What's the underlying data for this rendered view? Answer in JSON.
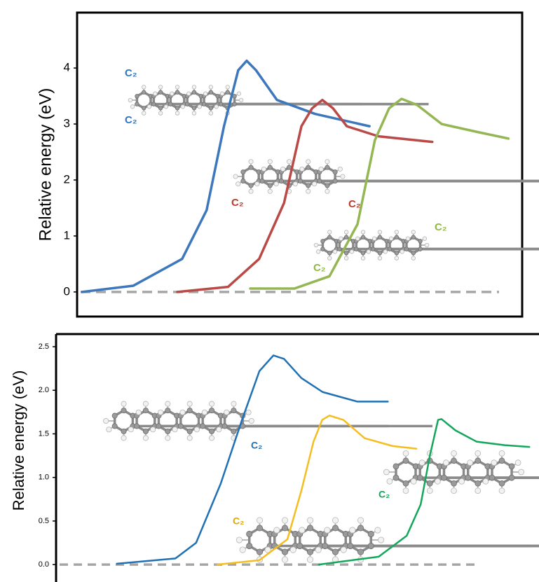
{
  "chart_data": [
    {
      "type": "line",
      "ylabel": "Relative energy (eV)",
      "xlim": [
        0,
        100
      ],
      "ylim": [
        -0.44,
        4.99
      ],
      "yticks": [
        0,
        1,
        2,
        3,
        4
      ],
      "hline": {
        "value": 0,
        "color": "#a6a6a6",
        "dashed": true
      },
      "series": [
        {
          "color": "#3d78bd",
          "x": [
            1.1,
            12.6,
            23.6,
            29.1,
            33,
            36.2,
            38.1,
            40.2,
            44.9,
            53.5,
            65.7
          ],
          "values": [
            0,
            0.11,
            0.59,
            1.46,
            2.96,
            3.96,
            4.13,
            3.96,
            3.43,
            3.18,
            2.96
          ]
        },
        {
          "color": "#b94a47",
          "x": [
            22.5,
            33.9,
            40.9,
            46.5,
            50.4,
            52.8,
            55.1,
            57.5,
            60.6,
            67.7,
            79.8
          ],
          "values": [
            0,
            0.09,
            0.59,
            1.59,
            2.96,
            3.28,
            3.43,
            3.28,
            2.96,
            2.78,
            2.68
          ]
        },
        {
          "color": "#94b653",
          "x": [
            38.9,
            48.8,
            56.7,
            63,
            66.9,
            70.1,
            72.9,
            76.4,
            81.9,
            89.8,
            96.9
          ],
          "values": [
            0.06,
            0.06,
            0.28,
            1.21,
            2.71,
            3.28,
            3.45,
            3.34,
            3.0,
            2.86,
            2.74
          ]
        }
      ],
      "annotations": [
        {
          "text": "C₂",
          "color": "#2e75c6"
        },
        {
          "text": "C₂",
          "color": "#2e75c6"
        },
        {
          "text": "C₂",
          "color": "#c0392b"
        },
        {
          "text": "C₂",
          "color": "#c0392b"
        },
        {
          "text": "C₂",
          "color": "#8fb83f"
        },
        {
          "text": "C₂",
          "color": "#8fb83f"
        }
      ]
    },
    {
      "type": "line",
      "ylabel": "Relative energy (eV)",
      "xlim": [
        0,
        100
      ],
      "ylim": [
        -0.2,
        2.645
      ],
      "yticks": [
        {
          "value": 0,
          "label": "0.0"
        },
        {
          "value": 0.5,
          "label": "0.5"
        },
        {
          "value": 1,
          "label": "1.0"
        },
        {
          "value": 1.5,
          "label": "1.5"
        },
        {
          "value": 2,
          "label": "2.0"
        },
        {
          "value": 2.5,
          "label": "2.5"
        }
      ],
      "hline": {
        "value": 0,
        "color": "#a6a6a6",
        "dashed": true
      },
      "series": [
        {
          "color": "#1f70b5",
          "x": [
            12.6,
            24.7,
            29,
            34.1,
            38.5,
            42.1,
            45,
            47.2,
            50.8,
            55.2,
            62.4,
            68.7
          ],
          "values": [
            0.01,
            0.07,
            0.25,
            0.93,
            1.66,
            2.22,
            2.4,
            2.36,
            2.14,
            1.98,
            1.87,
            1.87
          ]
        },
        {
          "color": "#f5bd1f",
          "x": [
            33.4,
            42.1,
            47.9,
            50.8,
            53.3,
            55.1,
            56.6,
            59.5,
            63.9,
            69.7,
            74.6
          ],
          "values": [
            0,
            0.05,
            0.29,
            0.85,
            1.41,
            1.66,
            1.71,
            1.66,
            1.45,
            1.36,
            1.33
          ]
        },
        {
          "color": "#14a75b",
          "x": [
            54.4,
            66.8,
            72.6,
            75.5,
            77.4,
            79.1,
            79.8,
            82.7,
            87.1,
            92.9,
            98
          ],
          "values": [
            0,
            0.09,
            0.33,
            0.69,
            1.25,
            1.66,
            1.67,
            1.54,
            1.41,
            1.37,
            1.35
          ]
        }
      ],
      "annotations": [
        {
          "text": "C₂",
          "color": "#1f70b5"
        },
        {
          "text": "C₂",
          "color": "#e0a800"
        },
        {
          "text": "C₂",
          "color": "#14a75b"
        }
      ]
    }
  ]
}
